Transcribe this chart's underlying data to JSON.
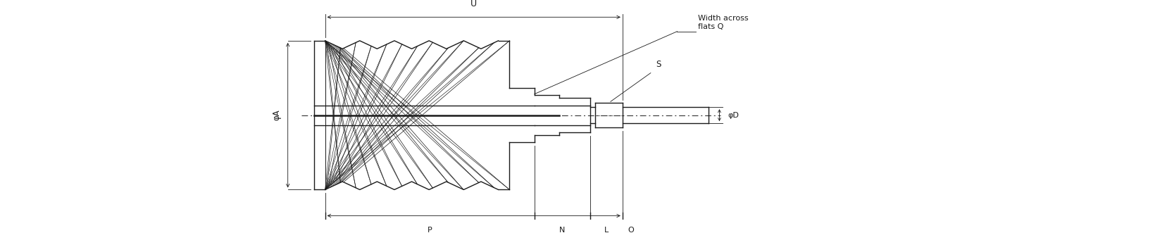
{
  "bg_color": "#ffffff",
  "line_color": "#1a1a1a",
  "lw_main": 1.0,
  "lw_thin": 0.6,
  "lw_thick": 1.8,
  "fig_width": 16.47,
  "fig_height": 3.31,
  "labels": {
    "U": "U",
    "width_across_flats": "Width across\nflats Q",
    "S": "S",
    "phi_A": "φA",
    "phi_D": "φD",
    "P": "P",
    "N": "N",
    "L": "L",
    "O": "O"
  }
}
